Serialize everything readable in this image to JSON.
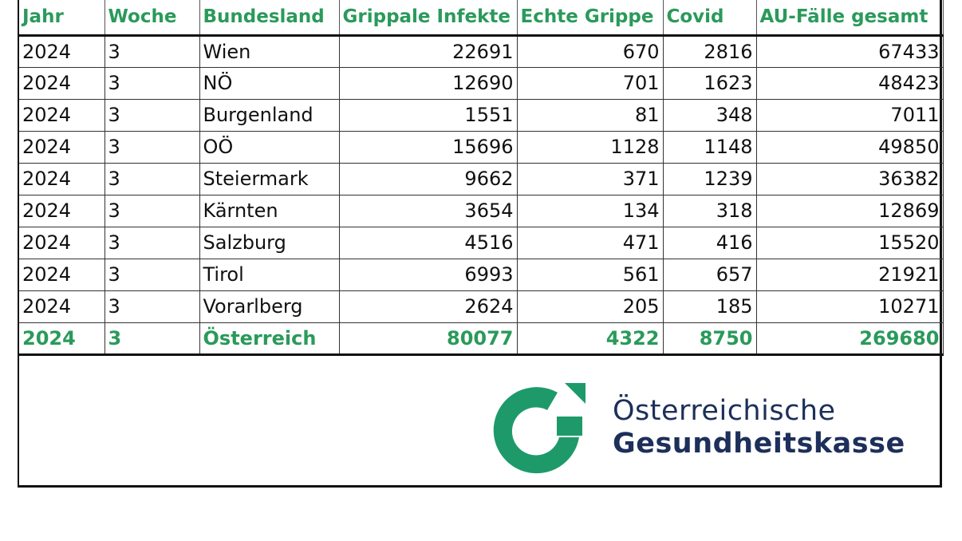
{
  "table": {
    "headers": [
      "Jahr",
      "Woche",
      "Bundesland",
      "Grippale Infekte",
      "Echte Grippe",
      "Covid",
      "AU-Fälle gesamt"
    ],
    "rows": [
      [
        "2024",
        "3",
        "Wien",
        "22691",
        "670",
        "2816",
        "67433"
      ],
      [
        "2024",
        "3",
        "NÖ",
        "12690",
        "701",
        "1623",
        "48423"
      ],
      [
        "2024",
        "3",
        "Burgenland",
        "1551",
        "81",
        "348",
        "7011"
      ],
      [
        "2024",
        "3",
        "OÖ",
        "15696",
        "1128",
        "1148",
        "49850"
      ],
      [
        "2024",
        "3",
        "Steiermark",
        "9662",
        "371",
        "1239",
        "36382"
      ],
      [
        "2024",
        "3",
        "Kärnten",
        "3654",
        "134",
        "318",
        "12869"
      ],
      [
        "2024",
        "3",
        "Salzburg",
        "4516",
        "471",
        "416",
        "15520"
      ],
      [
        "2024",
        "3",
        "Tirol",
        "6993",
        "561",
        "657",
        "21921"
      ],
      [
        "2024",
        "3",
        "Vorarlberg",
        "2624",
        "205",
        "185",
        "10271"
      ]
    ],
    "total": [
      "2024",
      "3",
      "Österreich",
      "80077",
      "4322",
      "8750",
      "269680"
    ]
  },
  "logo": {
    "line1": "Österreichische",
    "line2": "Gesundheitskasse",
    "green": "#1e9a6a",
    "navy": "#1d2f5a"
  }
}
